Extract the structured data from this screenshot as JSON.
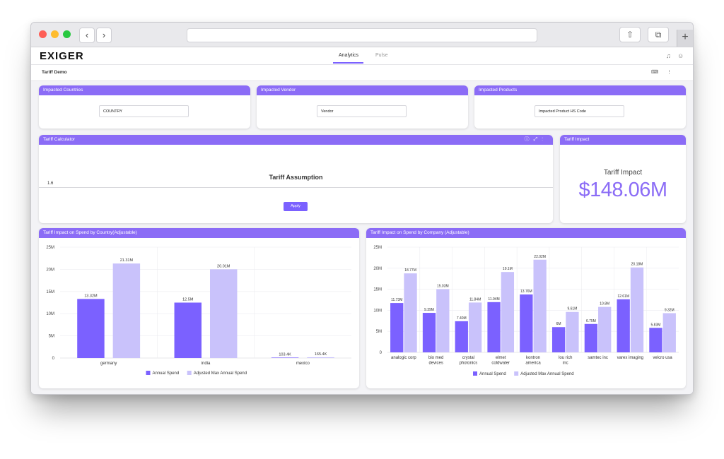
{
  "header": {
    "logo": "EXIGER",
    "tabs": [
      {
        "label": "Analytics"
      },
      {
        "label": "Pulse"
      }
    ]
  },
  "subheader": {
    "title": "Tariff Demo"
  },
  "filters": {
    "countries": {
      "title": "Impacted Countries",
      "value": "COUNTRY"
    },
    "vendor": {
      "title": "Impacted Vendor",
      "value": "Vendor"
    },
    "products": {
      "title": "Impacted Products",
      "value": "Impacted Product HS Code"
    }
  },
  "calculator": {
    "title": "Tariff Calculator",
    "assumption_label": "Tariff Assumption",
    "slider_value": "1.6",
    "apply_label": "Apply"
  },
  "impact": {
    "title": "Tariff Impact",
    "label": "Tariff Impact",
    "value": "$148.06M"
  },
  "colors": {
    "primary": "#7b61ff",
    "secondary": "#c9c2fb",
    "header": "#8b6cf6"
  },
  "chart_data": [
    {
      "type": "bar",
      "title": "Tariff Impact on Spend by Country(Adjustable)",
      "categories": [
        "germany",
        "india",
        "mexico"
      ],
      "series": [
        {
          "name": "Annual Spend",
          "values": [
            13.32,
            12.5,
            0.1034
          ],
          "labels": [
            "13.32M",
            "12.5M",
            "103.4K"
          ]
        },
        {
          "name": "Adjusted Max Annual Spend",
          "values": [
            21.31,
            20.01,
            0.1654
          ],
          "labels": [
            "21.31M",
            "20.01M",
            "165.4K"
          ]
        }
      ],
      "ylim": [
        0,
        25
      ],
      "yticks": [
        "0",
        "5M",
        "10M",
        "15M",
        "20M",
        "25M"
      ],
      "legend": "bottom",
      "grid": true
    },
    {
      "type": "bar",
      "title": "Tariff Impact on Spend by Company (Adjustable)",
      "categories": [
        "analogic corp",
        "bio med devices",
        "crystal photonics",
        "elmet coldwater",
        "kontron america",
        "lou rich inc",
        "samtec inc",
        "varex imaging",
        "velcro usa"
      ],
      "series": [
        {
          "name": "Annual Spend",
          "values": [
            11.73,
            9.39,
            7.4,
            11.94,
            13.76,
            6,
            6.75,
            12.61,
            5.83
          ],
          "labels": [
            "11.73M",
            "9.39M",
            "7.40M",
            "11.94M",
            "13.76M",
            "6M",
            "6.75M",
            "12.61M",
            "5.83M"
          ]
        },
        {
          "name": "Adjusted Max Annual Spend",
          "values": [
            18.77,
            15.03,
            11.84,
            19.1,
            22.02,
            9.61,
            10.8,
            20.18,
            9.32
          ],
          "labels": [
            "18.77M",
            "15.03M",
            "11.84M",
            "19.1M",
            "22.02M",
            "9.61M",
            "10.8M",
            "20.18M",
            "9.32M"
          ]
        }
      ],
      "ylim": [
        0,
        25
      ],
      "yticks": [
        "0",
        "5M",
        "10M",
        "15M",
        "20M",
        "25M"
      ],
      "legend": "bottom",
      "grid": true
    }
  ]
}
